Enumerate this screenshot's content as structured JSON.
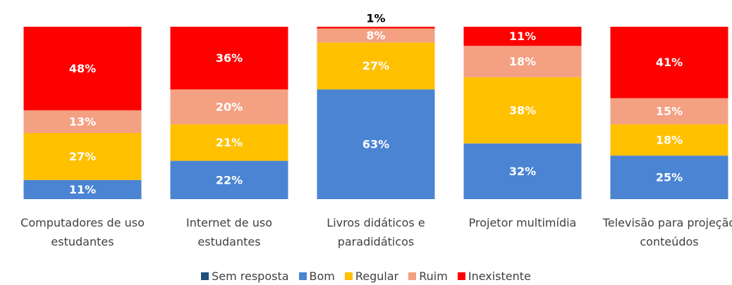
{
  "chart_data": {
    "type": "stacked_bar",
    "categories": [
      "Computadores de uso estudantes",
      "Internet de uso estudantes",
      "Livros didáticos e paradidáticos",
      "Projetor multimídia",
      "Televisão para projeção conteúdos"
    ],
    "series": [
      {
        "name": "Sem resposta",
        "color": "#1f4e79",
        "values": [
          0,
          0,
          0,
          0,
          0
        ]
      },
      {
        "name": "Bom",
        "color": "#4a84d3",
        "values": [
          11,
          22,
          63,
          32,
          25
        ],
        "value_labels": [
          "11%",
          "22%",
          "63%",
          "32%",
          "25%"
        ]
      },
      {
        "name": "Regular",
        "color": "#ffc000",
        "values": [
          27,
          21,
          27,
          38,
          18
        ],
        "value_labels": [
          "27%",
          "21%",
          "27%",
          "38%",
          "18%"
        ]
      },
      {
        "name": "Ruim",
        "color": "#f3a083",
        "values": [
          13,
          20,
          8,
          18,
          15
        ],
        "value_labels": [
          "13%",
          "20%",
          "8%",
          "18%",
          "15%"
        ]
      },
      {
        "name": "Inexistente",
        "color": "#ff0000",
        "values": [
          48,
          36,
          1,
          11,
          41
        ],
        "value_labels": [
          "48%",
          "36%",
          "1%",
          "11%",
          "41%"
        ]
      }
    ],
    "ylim": [
      0,
      99
    ],
    "legend": "bottom"
  }
}
